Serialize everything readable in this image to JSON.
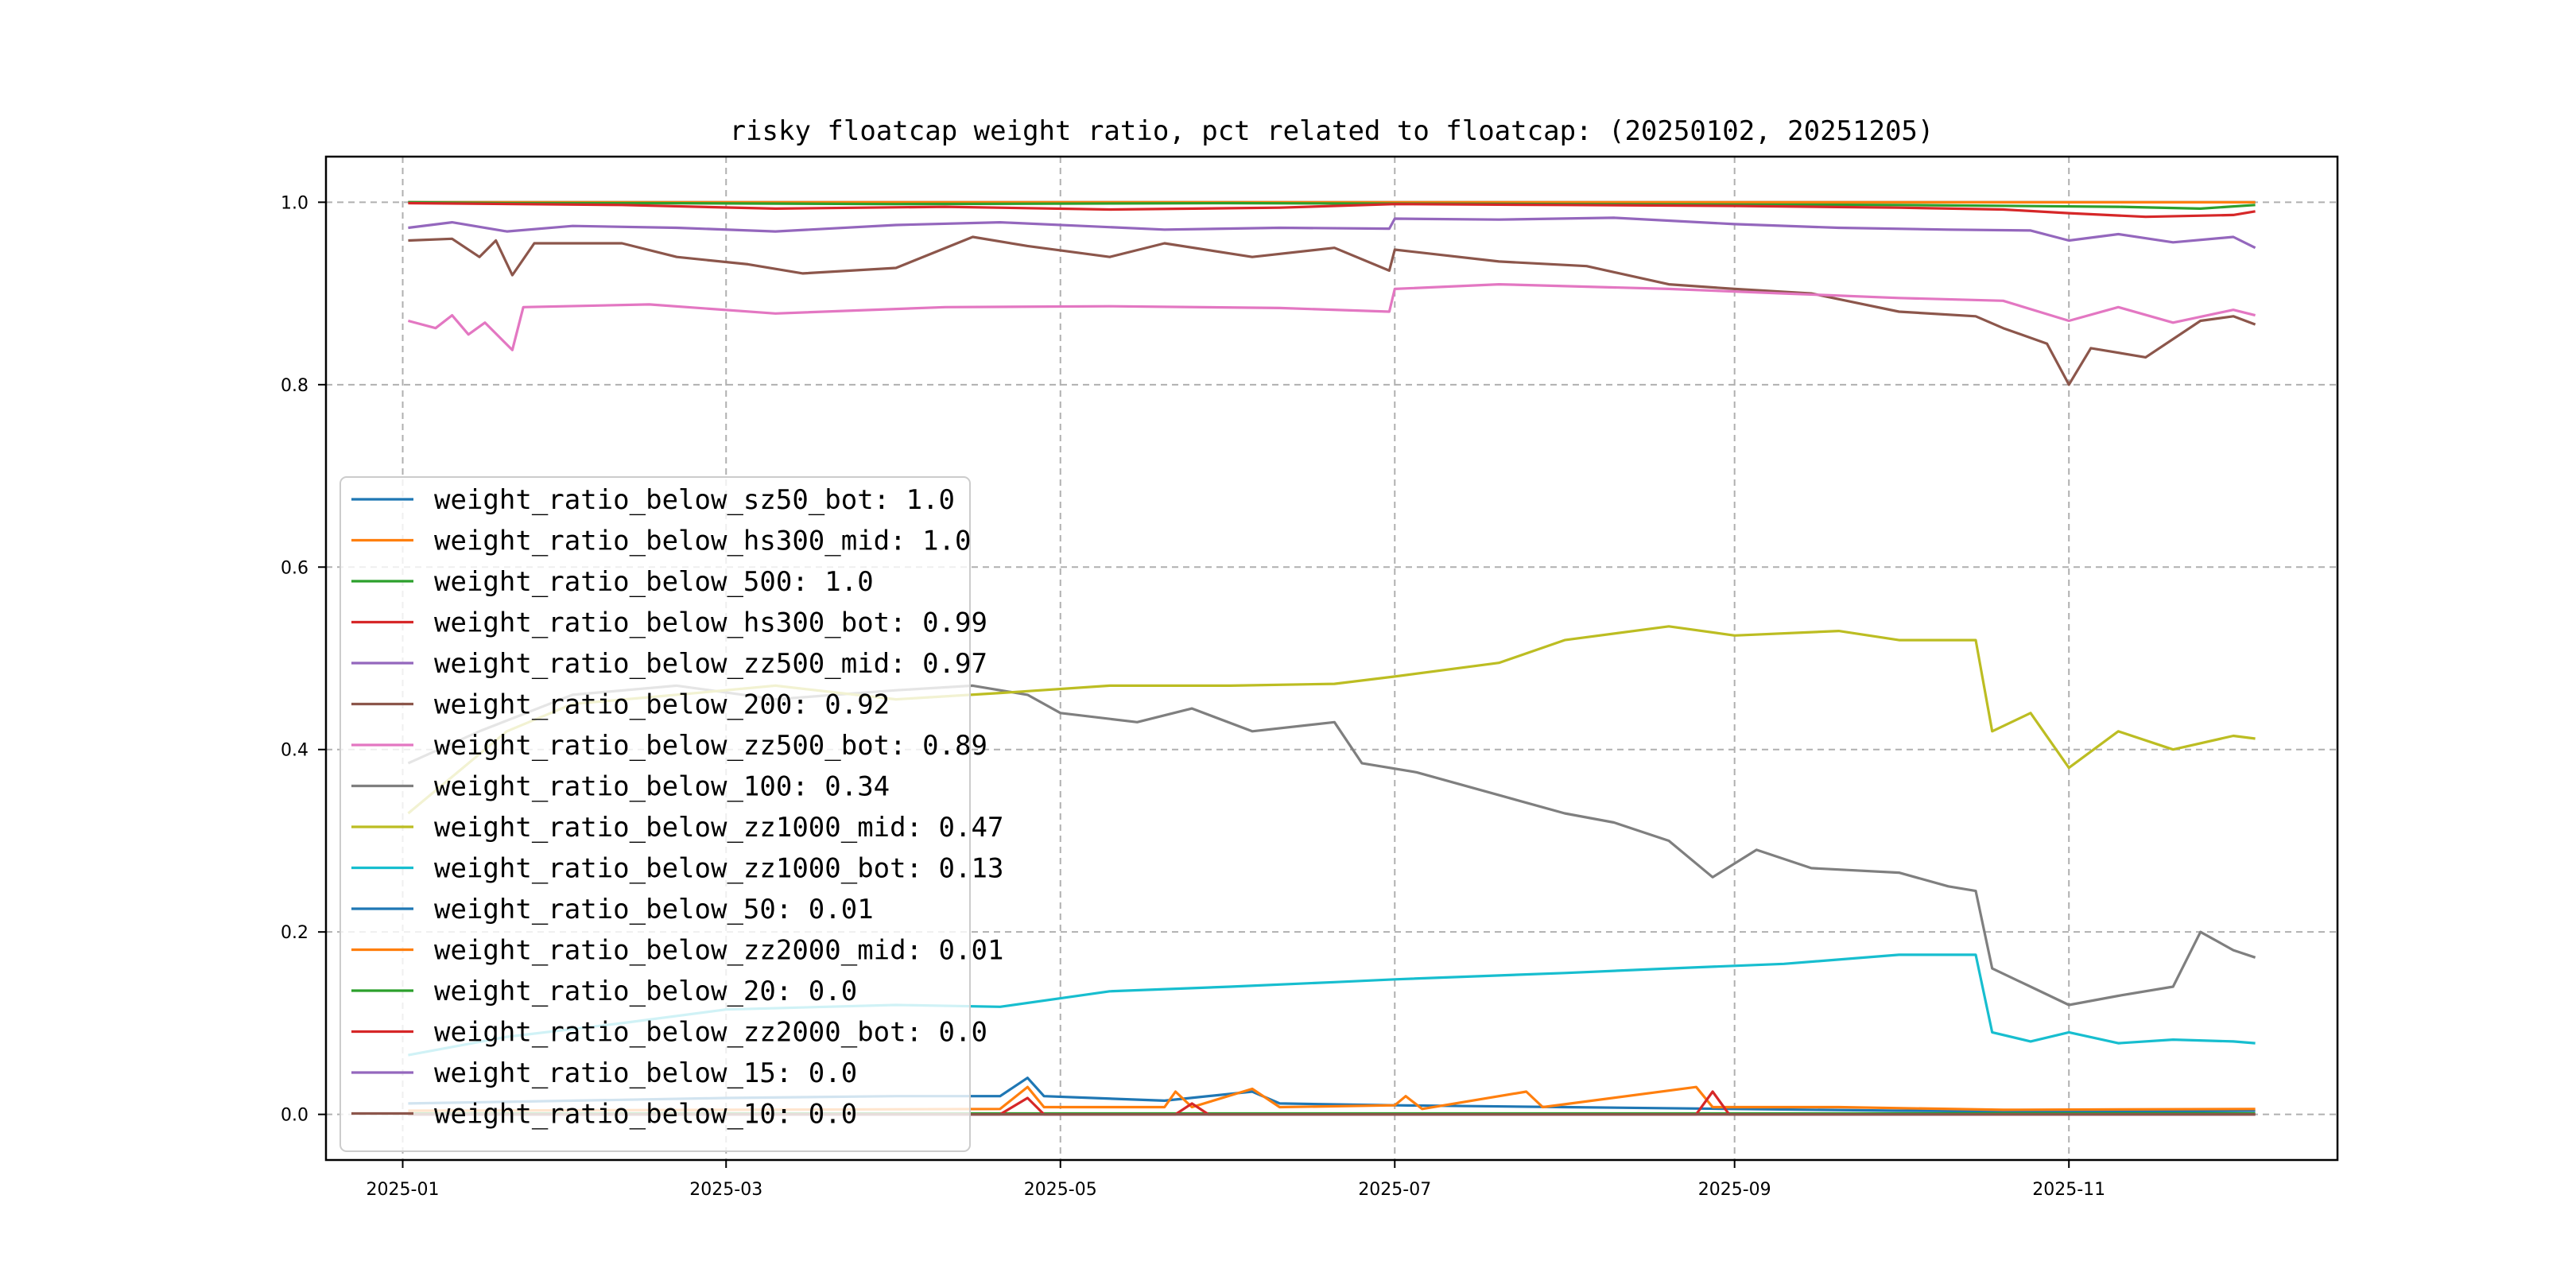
{
  "chart_data": {
    "type": "line",
    "title": "risky floatcap weight ratio, pct related to floatcap: (20250102, 20251205)",
    "xlabel": "",
    "ylabel": "",
    "xlim": [
      "2024-12-18",
      "2025-12-20"
    ],
    "ylim": [
      -0.05,
      1.05
    ],
    "x_ticks": [
      "2025-01",
      "2025-03",
      "2025-05",
      "2025-07",
      "2025-09",
      "2025-11"
    ],
    "y_ticks": [
      "0.0",
      "0.2",
      "0.4",
      "0.6",
      "0.8",
      "1.0"
    ],
    "grid": true,
    "legend_position": "lower-left",
    "series": [
      {
        "name": "weight_ratio_below_sz50_bot: 1.0",
        "color": "#1f77b4",
        "points": [
          [
            "2025-01-02",
            1.0
          ],
          [
            "2025-12-05",
            1.0
          ]
        ]
      },
      {
        "name": "weight_ratio_below_hs300_mid: 1.0",
        "color": "#ff7f0e",
        "points": [
          [
            "2025-01-02",
            1.0
          ],
          [
            "2025-12-05",
            1.0
          ]
        ]
      },
      {
        "name": "weight_ratio_below_500: 1.0",
        "color": "#2ca02c",
        "points": [
          [
            "2025-01-02",
            1.0
          ],
          [
            "2025-01-20",
            0.999
          ],
          [
            "2025-02-15",
            0.999
          ],
          [
            "2025-04-01",
            0.998
          ],
          [
            "2025-06-01",
            0.999
          ],
          [
            "2025-08-01",
            0.998
          ],
          [
            "2025-10-01",
            0.997
          ],
          [
            "2025-11-10",
            0.995
          ],
          [
            "2025-11-25",
            0.993
          ],
          [
            "2025-12-05",
            0.997
          ]
        ]
      },
      {
        "name": "weight_ratio_below_hs300_bot: 0.99",
        "color": "#d62728",
        "points": [
          [
            "2025-01-02",
            0.999
          ],
          [
            "2025-02-10",
            0.997
          ],
          [
            "2025-03-10",
            0.993
          ],
          [
            "2025-04-10",
            0.995
          ],
          [
            "2025-05-10",
            0.992
          ],
          [
            "2025-06-10",
            0.994
          ],
          [
            "2025-07-01",
            0.998
          ],
          [
            "2025-08-01",
            0.997
          ],
          [
            "2025-09-01",
            0.996
          ],
          [
            "2025-10-01",
            0.994
          ],
          [
            "2025-10-20",
            0.992
          ],
          [
            "2025-11-01",
            0.988
          ],
          [
            "2025-11-15",
            0.984
          ],
          [
            "2025-12-01",
            0.986
          ],
          [
            "2025-12-05",
            0.99
          ]
        ]
      },
      {
        "name": "weight_ratio_below_zz500_mid: 0.97",
        "color": "#9467bd",
        "points": [
          [
            "2025-01-02",
            0.972
          ],
          [
            "2025-01-10",
            0.978
          ],
          [
            "2025-01-20",
            0.968
          ],
          [
            "2025-02-01",
            0.974
          ],
          [
            "2025-02-20",
            0.972
          ],
          [
            "2025-03-10",
            0.968
          ],
          [
            "2025-04-01",
            0.975
          ],
          [
            "2025-04-20",
            0.978
          ],
          [
            "2025-05-05",
            0.974
          ],
          [
            "2025-05-20",
            0.97
          ],
          [
            "2025-06-10",
            0.972
          ],
          [
            "2025-06-30",
            0.971
          ],
          [
            "2025-07-01",
            0.982
          ],
          [
            "2025-07-20",
            0.981
          ],
          [
            "2025-08-10",
            0.983
          ],
          [
            "2025-09-01",
            0.976
          ],
          [
            "2025-09-20",
            0.972
          ],
          [
            "2025-10-10",
            0.97
          ],
          [
            "2025-10-25",
            0.969
          ],
          [
            "2025-11-01",
            0.958
          ],
          [
            "2025-11-10",
            0.965
          ],
          [
            "2025-11-20",
            0.956
          ],
          [
            "2025-12-01",
            0.962
          ],
          [
            "2025-12-05",
            0.95
          ]
        ]
      },
      {
        "name": "weight_ratio_below_200: 0.92",
        "color": "#8c564b",
        "points": [
          [
            "2025-01-02",
            0.958
          ],
          [
            "2025-01-10",
            0.96
          ],
          [
            "2025-01-15",
            0.94
          ],
          [
            "2025-01-18",
            0.958
          ],
          [
            "2025-01-21",
            0.92
          ],
          [
            "2025-01-25",
            0.955
          ],
          [
            "2025-02-10",
            0.955
          ],
          [
            "2025-02-20",
            0.94
          ],
          [
            "2025-03-05",
            0.932
          ],
          [
            "2025-03-15",
            0.922
          ],
          [
            "2025-04-01",
            0.928
          ],
          [
            "2025-04-15",
            0.962
          ],
          [
            "2025-04-25",
            0.952
          ],
          [
            "2025-05-10",
            0.94
          ],
          [
            "2025-05-20",
            0.955
          ],
          [
            "2025-06-05",
            0.94
          ],
          [
            "2025-06-20",
            0.95
          ],
          [
            "2025-06-30",
            0.925
          ],
          [
            "2025-07-01",
            0.948
          ],
          [
            "2025-07-20",
            0.935
          ],
          [
            "2025-08-05",
            0.93
          ],
          [
            "2025-08-20",
            0.91
          ],
          [
            "2025-09-01",
            0.905
          ],
          [
            "2025-09-15",
            0.9
          ],
          [
            "2025-10-01",
            0.88
          ],
          [
            "2025-10-15",
            0.875
          ],
          [
            "2025-10-20",
            0.862
          ],
          [
            "2025-10-28",
            0.845
          ],
          [
            "2025-11-01",
            0.8
          ],
          [
            "2025-11-05",
            0.84
          ],
          [
            "2025-11-15",
            0.83
          ],
          [
            "2025-11-25",
            0.87
          ],
          [
            "2025-12-01",
            0.875
          ],
          [
            "2025-12-05",
            0.866
          ]
        ]
      },
      {
        "name": "weight_ratio_below_zz500_bot: 0.89",
        "color": "#e377c2",
        "points": [
          [
            "2025-01-02",
            0.87
          ],
          [
            "2025-01-07",
            0.862
          ],
          [
            "2025-01-10",
            0.876
          ],
          [
            "2025-01-13",
            0.855
          ],
          [
            "2025-01-16",
            0.868
          ],
          [
            "2025-01-21",
            0.838
          ],
          [
            "2025-01-23",
            0.885
          ],
          [
            "2025-02-15",
            0.888
          ],
          [
            "2025-03-10",
            0.878
          ],
          [
            "2025-04-10",
            0.885
          ],
          [
            "2025-05-10",
            0.886
          ],
          [
            "2025-06-10",
            0.884
          ],
          [
            "2025-06-30",
            0.88
          ],
          [
            "2025-07-01",
            0.905
          ],
          [
            "2025-07-20",
            0.91
          ],
          [
            "2025-08-20",
            0.905
          ],
          [
            "2025-09-10",
            0.9
          ],
          [
            "2025-10-01",
            0.895
          ],
          [
            "2025-10-20",
            0.892
          ],
          [
            "2025-11-01",
            0.87
          ],
          [
            "2025-11-10",
            0.885
          ],
          [
            "2025-11-20",
            0.868
          ],
          [
            "2025-12-01",
            0.882
          ],
          [
            "2025-12-05",
            0.876
          ]
        ]
      },
      {
        "name": "weight_ratio_below_100: 0.34",
        "color": "#7f7f7f",
        "points": [
          [
            "2025-01-02",
            0.385
          ],
          [
            "2025-01-15",
            0.42
          ],
          [
            "2025-02-01",
            0.46
          ],
          [
            "2025-02-20",
            0.47
          ],
          [
            "2025-03-10",
            0.455
          ],
          [
            "2025-04-01",
            0.465
          ],
          [
            "2025-04-15",
            0.47
          ],
          [
            "2025-04-25",
            0.46
          ],
          [
            "2025-05-01",
            0.44
          ],
          [
            "2025-05-15",
            0.43
          ],
          [
            "2025-05-25",
            0.445
          ],
          [
            "2025-06-05",
            0.42
          ],
          [
            "2025-06-20",
            0.43
          ],
          [
            "2025-06-25",
            0.385
          ],
          [
            "2025-07-05",
            0.375
          ],
          [
            "2025-07-20",
            0.35
          ],
          [
            "2025-08-01",
            0.33
          ],
          [
            "2025-08-10",
            0.32
          ],
          [
            "2025-08-20",
            0.3
          ],
          [
            "2025-08-28",
            0.26
          ],
          [
            "2025-09-05",
            0.29
          ],
          [
            "2025-09-15",
            0.27
          ],
          [
            "2025-10-01",
            0.265
          ],
          [
            "2025-10-10",
            0.25
          ],
          [
            "2025-10-15",
            0.245
          ],
          [
            "2025-10-18",
            0.16
          ],
          [
            "2025-10-25",
            0.14
          ],
          [
            "2025-11-01",
            0.12
          ],
          [
            "2025-11-10",
            0.13
          ],
          [
            "2025-11-20",
            0.14
          ],
          [
            "2025-11-25",
            0.2
          ],
          [
            "2025-12-01",
            0.18
          ],
          [
            "2025-12-05",
            0.172
          ]
        ]
      },
      {
        "name": "weight_ratio_below_zz1000_mid: 0.47",
        "color": "#bcbd22",
        "points": [
          [
            "2025-01-02",
            0.33
          ],
          [
            "2025-01-10",
            0.37
          ],
          [
            "2025-01-20",
            0.42
          ],
          [
            "2025-02-01",
            0.45
          ],
          [
            "2025-02-20",
            0.46
          ],
          [
            "2025-03-10",
            0.47
          ],
          [
            "2025-04-01",
            0.455
          ],
          [
            "2025-04-20",
            0.462
          ],
          [
            "2025-05-10",
            0.47
          ],
          [
            "2025-06-01",
            0.47
          ],
          [
            "2025-06-20",
            0.472
          ],
          [
            "2025-07-01",
            0.48
          ],
          [
            "2025-07-20",
            0.495
          ],
          [
            "2025-08-01",
            0.52
          ],
          [
            "2025-08-20",
            0.535
          ],
          [
            "2025-09-01",
            0.525
          ],
          [
            "2025-09-20",
            0.53
          ],
          [
            "2025-10-01",
            0.52
          ],
          [
            "2025-10-15",
            0.52
          ],
          [
            "2025-10-18",
            0.42
          ],
          [
            "2025-10-25",
            0.44
          ],
          [
            "2025-11-01",
            0.38
          ],
          [
            "2025-11-10",
            0.42
          ],
          [
            "2025-11-20",
            0.4
          ],
          [
            "2025-12-01",
            0.415
          ],
          [
            "2025-12-05",
            0.412
          ]
        ]
      },
      {
        "name": "weight_ratio_below_zz1000_bot: 0.13",
        "color": "#17becf",
        "points": [
          [
            "2025-01-02",
            0.065
          ],
          [
            "2025-01-20",
            0.085
          ],
          [
            "2025-02-10",
            0.1
          ],
          [
            "2025-03-01",
            0.115
          ],
          [
            "2025-04-01",
            0.12
          ],
          [
            "2025-04-20",
            0.118
          ],
          [
            "2025-05-10",
            0.135
          ],
          [
            "2025-06-01",
            0.14
          ],
          [
            "2025-06-20",
            0.145
          ],
          [
            "2025-07-01",
            0.148
          ],
          [
            "2025-08-01",
            0.155
          ],
          [
            "2025-08-20",
            0.16
          ],
          [
            "2025-09-10",
            0.165
          ],
          [
            "2025-10-01",
            0.175
          ],
          [
            "2025-10-15",
            0.175
          ],
          [
            "2025-10-18",
            0.09
          ],
          [
            "2025-10-25",
            0.08
          ],
          [
            "2025-11-01",
            0.09
          ],
          [
            "2025-11-10",
            0.078
          ],
          [
            "2025-11-20",
            0.082
          ],
          [
            "2025-12-01",
            0.08
          ],
          [
            "2025-12-05",
            0.078
          ]
        ]
      },
      {
        "name": "weight_ratio_below_50: 0.01",
        "color": "#1f77b4",
        "points": [
          [
            "2025-01-02",
            0.012
          ],
          [
            "2025-02-01",
            0.015
          ],
          [
            "2025-03-01",
            0.018
          ],
          [
            "2025-04-01",
            0.02
          ],
          [
            "2025-04-20",
            0.02
          ],
          [
            "2025-04-25",
            0.04
          ],
          [
            "2025-04-28",
            0.02
          ],
          [
            "2025-05-20",
            0.015
          ],
          [
            "2025-06-05",
            0.025
          ],
          [
            "2025-06-10",
            0.012
          ],
          [
            "2025-07-01",
            0.01
          ],
          [
            "2025-08-01",
            0.008
          ],
          [
            "2025-09-01",
            0.006
          ],
          [
            "2025-10-01",
            0.004
          ],
          [
            "2025-11-01",
            0.003
          ],
          [
            "2025-12-05",
            0.004
          ]
        ]
      },
      {
        "name": "weight_ratio_below_zz2000_mid: 0.01",
        "color": "#ff7f0e",
        "points": [
          [
            "2025-01-02",
            0.004
          ],
          [
            "2025-03-01",
            0.005
          ],
          [
            "2025-04-20",
            0.006
          ],
          [
            "2025-04-25",
            0.03
          ],
          [
            "2025-04-28",
            0.008
          ],
          [
            "2025-05-20",
            0.008
          ],
          [
            "2025-05-22",
            0.025
          ],
          [
            "2025-05-25",
            0.008
          ],
          [
            "2025-06-05",
            0.028
          ],
          [
            "2025-06-10",
            0.008
          ],
          [
            "2025-07-01",
            0.01
          ],
          [
            "2025-07-03",
            0.02
          ],
          [
            "2025-07-06",
            0.006
          ],
          [
            "2025-07-25",
            0.025
          ],
          [
            "2025-07-28",
            0.008
          ],
          [
            "2025-08-25",
            0.03
          ],
          [
            "2025-08-28",
            0.008
          ],
          [
            "2025-09-20",
            0.008
          ],
          [
            "2025-10-20",
            0.005
          ],
          [
            "2025-12-05",
            0.006
          ]
        ]
      },
      {
        "name": "weight_ratio_below_20: 0.0",
        "color": "#2ca02c",
        "points": [
          [
            "2025-01-02",
            0.001
          ],
          [
            "2025-12-05",
            0.001
          ]
        ]
      },
      {
        "name": "weight_ratio_below_zz2000_bot: 0.0",
        "color": "#d62728",
        "points": [
          [
            "2025-01-02",
            0.0
          ],
          [
            "2025-04-20",
            0.0
          ],
          [
            "2025-04-25",
            0.018
          ],
          [
            "2025-04-28",
            0.0
          ],
          [
            "2025-05-22",
            0.0
          ],
          [
            "2025-05-25",
            0.012
          ],
          [
            "2025-05-28",
            0.0
          ],
          [
            "2025-08-25",
            0.0
          ],
          [
            "2025-08-28",
            0.025
          ],
          [
            "2025-08-31",
            0.0
          ],
          [
            "2025-12-05",
            0.0
          ]
        ]
      },
      {
        "name": "weight_ratio_below_15: 0.0",
        "color": "#9467bd",
        "points": [
          [
            "2025-01-02",
            0.0
          ],
          [
            "2025-12-05",
            0.0
          ]
        ]
      },
      {
        "name": "weight_ratio_below_10: 0.0",
        "color": "#8c564b",
        "points": [
          [
            "2025-01-02",
            0.0
          ],
          [
            "2025-12-05",
            0.0
          ]
        ]
      }
    ]
  }
}
